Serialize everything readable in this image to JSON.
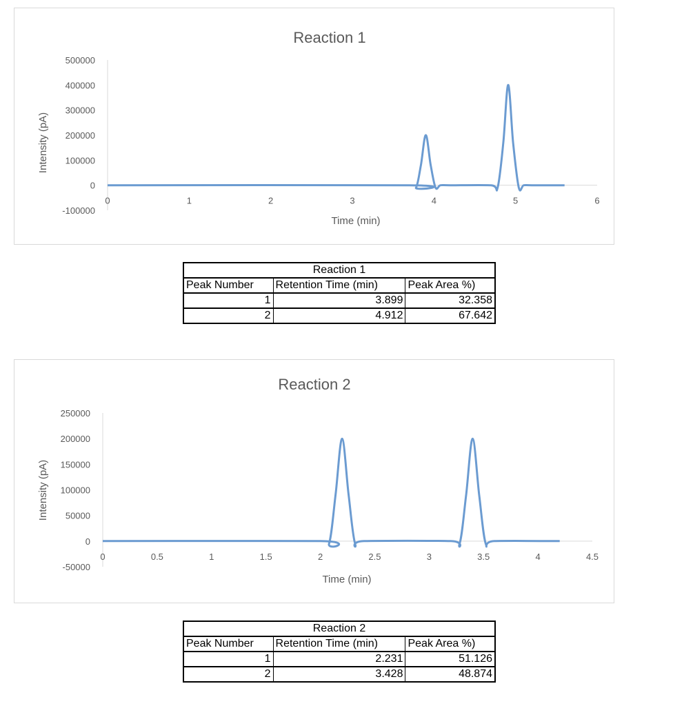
{
  "chart_data": [
    {
      "type": "line",
      "title": "Reaction 1",
      "xlabel": "Time (min)",
      "ylabel": "Intensity (pA)",
      "xlim": [
        0,
        6
      ],
      "ylim": [
        -100000,
        500000
      ],
      "x_ticks": [
        "0",
        "1",
        "2",
        "3",
        "4",
        "5",
        "6"
      ],
      "y_ticks": [
        "500000",
        "400000",
        "300000",
        "200000",
        "100000",
        "0",
        "-100000"
      ],
      "series": [
        {
          "x": [
            0,
            3.7,
            3.78,
            3.84,
            3.9,
            3.96,
            4.02,
            4.08,
            4.2,
            4.7,
            4.78,
            4.85,
            4.91,
            4.97,
            5.04,
            5.1,
            5.2,
            5.6
          ],
          "values": [
            0,
            0,
            -10000,
            80000,
            200000,
            80000,
            -10000,
            0,
            0,
            0,
            -10000,
            170000,
            400000,
            170000,
            -10000,
            0,
            0,
            0
          ]
        }
      ],
      "grid": false,
      "legend": "none"
    },
    {
      "type": "line",
      "title": "Reaction 2",
      "xlabel": "Time (min)",
      "ylabel": "Intensity (pA)",
      "xlim": [
        0,
        4.5
      ],
      "ylim": [
        -50000,
        250000
      ],
      "x_ticks": [
        "0",
        "0.5",
        "1",
        "1.5",
        "2",
        "2.5",
        "3",
        "3.5",
        "4",
        "4.5"
      ],
      "y_ticks": [
        "250000",
        "200000",
        "150000",
        "100000",
        "50000",
        "0",
        "-50000"
      ],
      "series": [
        {
          "x": [
            0,
            2.0,
            2.08,
            2.14,
            2.2,
            2.26,
            2.32,
            2.4,
            3.2,
            3.28,
            3.34,
            3.4,
            3.46,
            3.52,
            3.6,
            4.2
          ],
          "values": [
            0,
            0,
            -5000,
            90000,
            200000,
            90000,
            -5000,
            0,
            0,
            -5000,
            90000,
            200000,
            90000,
            -5000,
            0,
            0
          ]
        }
      ],
      "grid": false,
      "legend": "none"
    }
  ],
  "tables": [
    {
      "title": "Reaction 1",
      "headers": [
        "Peak Number",
        "Retention Time (min)",
        "Peak Area %)"
      ],
      "rows": [
        [
          "1",
          "3.899",
          "32.358"
        ],
        [
          "2",
          "4.912",
          "67.642"
        ]
      ]
    },
    {
      "title": "Reaction 2",
      "headers": [
        "Peak Number",
        "Retention Time (min)",
        "Peak Area %)"
      ],
      "rows": [
        [
          "1",
          "2.231",
          "51.126"
        ],
        [
          "2",
          "3.428",
          "48.874"
        ]
      ]
    }
  ],
  "colors": {
    "series": "#6b9bd1",
    "axis": "#d9d9d9",
    "text": "#595959"
  }
}
